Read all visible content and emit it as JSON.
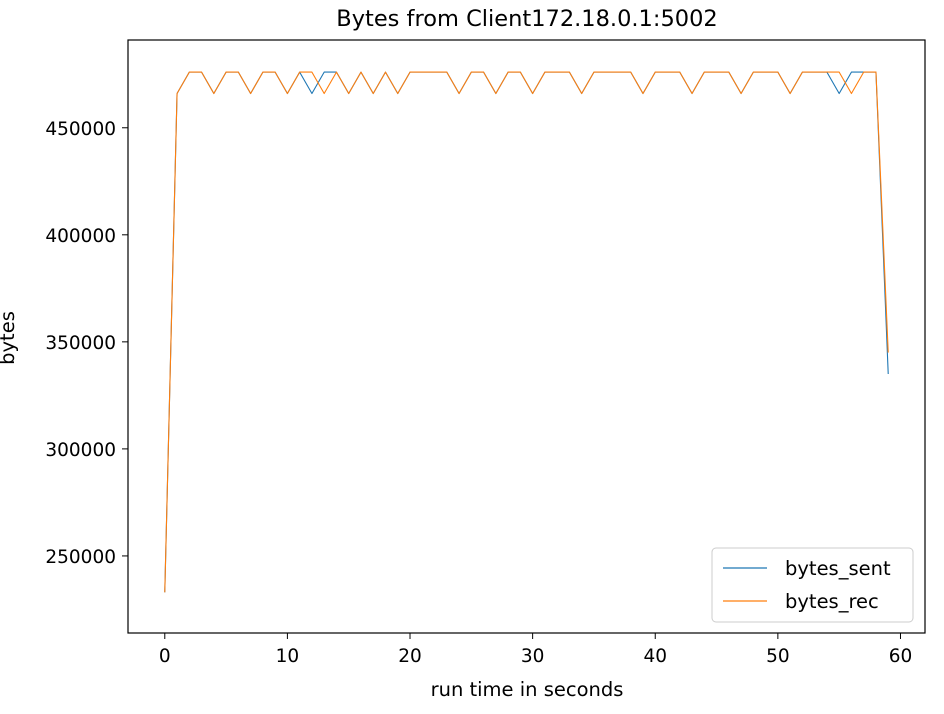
{
  "chart_data": {
    "type": "line",
    "title": "Bytes from Client172.18.0.1:5002",
    "xlabel": "run time in seconds",
    "ylabel": "bytes",
    "xlim": [
      -3,
      62
    ],
    "ylim": [
      214000,
      491000
    ],
    "xticks": [
      0,
      10,
      20,
      30,
      40,
      50,
      60
    ],
    "yticks": [
      250000,
      300000,
      350000,
      400000,
      450000
    ],
    "xtick_labels": [
      "0",
      "10",
      "20",
      "30",
      "40",
      "50",
      "60"
    ],
    "ytick_labels": [
      "250000",
      "300000",
      "350000",
      "400000",
      "450000"
    ],
    "grid": false,
    "legend_position": "lower right",
    "x": [
      0,
      1,
      2,
      3,
      4,
      5,
      6,
      7,
      8,
      9,
      10,
      11,
      12,
      13,
      14,
      15,
      16,
      17,
      18,
      19,
      20,
      21,
      22,
      23,
      24,
      25,
      26,
      27,
      28,
      29,
      30,
      31,
      32,
      33,
      34,
      35,
      36,
      37,
      38,
      39,
      40,
      41,
      42,
      43,
      44,
      45,
      46,
      47,
      48,
      49,
      50,
      51,
      52,
      53,
      54,
      55,
      56,
      57,
      58,
      59
    ],
    "series": [
      {
        "name": "bytes_sent",
        "color": "#1f77b4",
        "values": [
          233000,
          466000,
          476000,
          476000,
          466000,
          476000,
          476000,
          466000,
          476000,
          476000,
          466000,
          476000,
          466000,
          476000,
          476000,
          466000,
          476000,
          466000,
          476000,
          466000,
          476000,
          476000,
          476000,
          476000,
          466000,
          476000,
          476000,
          466000,
          476000,
          476000,
          466000,
          476000,
          476000,
          476000,
          466000,
          476000,
          476000,
          476000,
          476000,
          466000,
          476000,
          476000,
          476000,
          466000,
          476000,
          476000,
          476000,
          466000,
          476000,
          476000,
          476000,
          466000,
          476000,
          476000,
          476000,
          466000,
          476000,
          476000,
          476000,
          335000
        ]
      },
      {
        "name": "bytes_rec",
        "color": "#ff7f0e",
        "values": [
          233000,
          466000,
          476000,
          476000,
          466000,
          476000,
          476000,
          466000,
          476000,
          476000,
          466000,
          476000,
          476000,
          466000,
          476000,
          466000,
          476000,
          466000,
          476000,
          466000,
          476000,
          476000,
          476000,
          476000,
          466000,
          476000,
          476000,
          466000,
          476000,
          476000,
          466000,
          476000,
          476000,
          476000,
          466000,
          476000,
          476000,
          476000,
          476000,
          466000,
          476000,
          476000,
          476000,
          466000,
          476000,
          476000,
          476000,
          466000,
          476000,
          476000,
          476000,
          466000,
          476000,
          476000,
          476000,
          476000,
          466000,
          476000,
          476000,
          345000
        ]
      }
    ]
  }
}
